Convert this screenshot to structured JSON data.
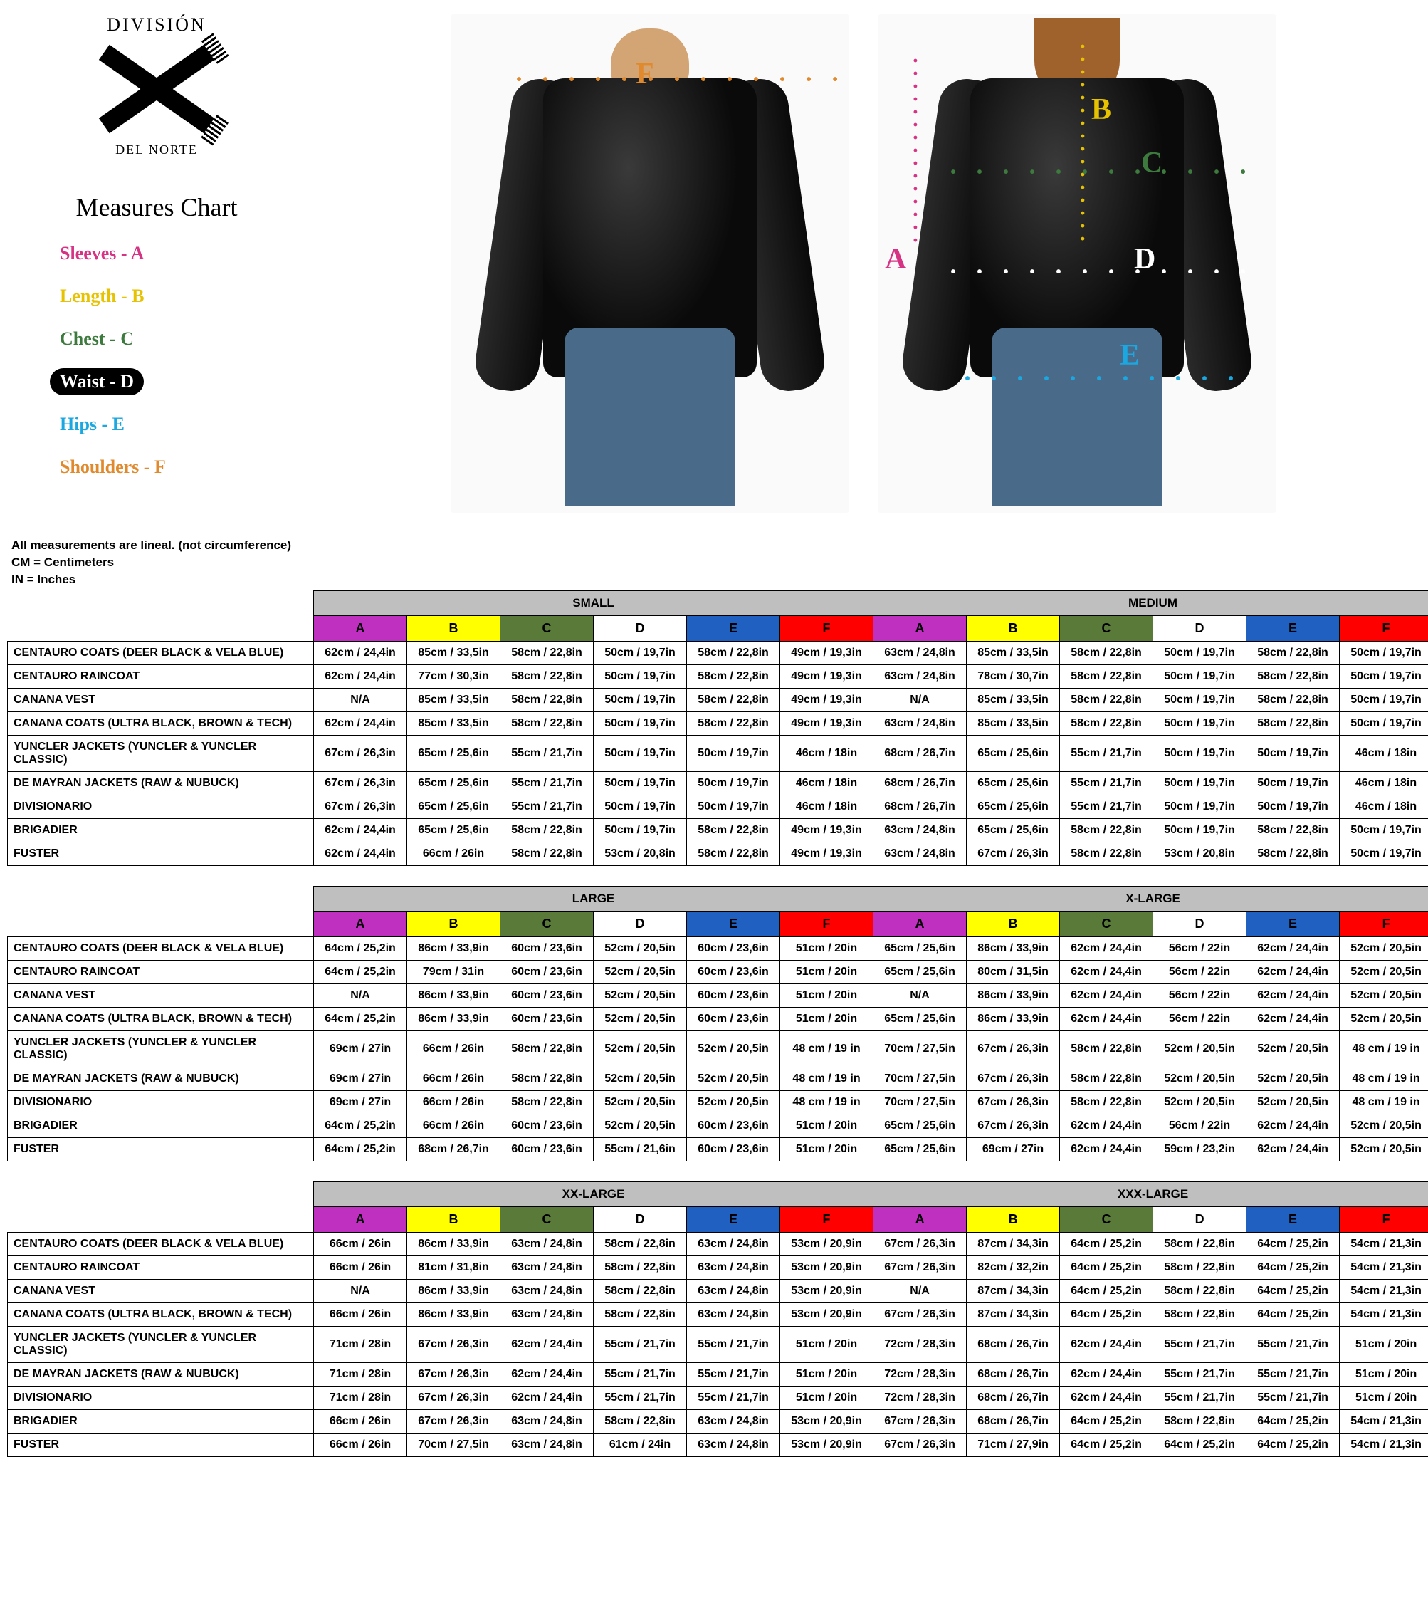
{
  "brand": {
    "top": "DIVISIÓN",
    "bot": "DEL NORTE"
  },
  "title": "Measures Chart",
  "legend": [
    {
      "label": "Sleeves - A",
      "color": "#d63384"
    },
    {
      "label": "Length - B",
      "color": "#e6c200"
    },
    {
      "label": "Chest - C",
      "color": "#3d7a3d"
    },
    {
      "label": "Waist - D",
      "color": "#ffffff",
      "pill": true
    },
    {
      "label": "Hips - E",
      "color": "#1ba8e0"
    },
    {
      "label": "Shoulders - F",
      "color": "#e08a2d"
    }
  ],
  "markers": {
    "F": "#e08a2d",
    "A": "#d63384",
    "B": "#e6c200",
    "C": "#3d7a3d",
    "D": "#ffffff",
    "E": "#1ba8e0"
  },
  "notes": [
    "All measurements are lineal. (not circumference)",
    "CM = Centimeters",
    "IN = Inches"
  ],
  "col_headers": [
    {
      "l": "A",
      "bg": "#c030c0",
      "fg": "#000"
    },
    {
      "l": "B",
      "bg": "#ffff00",
      "fg": "#000"
    },
    {
      "l": "C",
      "bg": "#5a7a3a",
      "fg": "#000"
    },
    {
      "l": "D",
      "bg": "#ffffff",
      "fg": "#000"
    },
    {
      "l": "E",
      "bg": "#2060c0",
      "fg": "#000"
    },
    {
      "l": "F",
      "bg": "#ff0000",
      "fg": "#000"
    }
  ],
  "products": [
    "CENTAURO COATS (DEER BLACK & VELA BLUE)",
    "CENTAURO RAINCOAT",
    "CANANA VEST",
    "CANANA COATS (ULTRA BLACK, BROWN & TECH)",
    "YUNCLER JACKETS (YUNCLER & YUNCLER CLASSIC)",
    "DE MAYRAN JACKETS (RAW & NUBUCK)",
    "DIVISIONARIO",
    "BRIGADIER",
    "FUSTER"
  ],
  "size_pairs": [
    [
      "SMALL",
      "MEDIUM"
    ],
    [
      "LARGE",
      "X-LARGE"
    ],
    [
      "XX-LARGE",
      "XXX-LARGE"
    ]
  ],
  "data": {
    "SMALL": [
      [
        "62cm / 24,4in",
        "85cm / 33,5in",
        "58cm / 22,8in",
        "50cm / 19,7in",
        "58cm / 22,8in",
        "49cm / 19,3in"
      ],
      [
        "62cm / 24,4in",
        "77cm / 30,3in",
        "58cm / 22,8in",
        "50cm / 19,7in",
        "58cm / 22,8in",
        "49cm / 19,3in"
      ],
      [
        "N/A",
        "85cm / 33,5in",
        "58cm / 22,8in",
        "50cm / 19,7in",
        "58cm / 22,8in",
        "49cm / 19,3in"
      ],
      [
        "62cm / 24,4in",
        "85cm / 33,5in",
        "58cm / 22,8in",
        "50cm / 19,7in",
        "58cm / 22,8in",
        "49cm / 19,3in"
      ],
      [
        "67cm / 26,3in",
        "65cm / 25,6in",
        "55cm / 21,7in",
        "50cm / 19,7in",
        "50cm / 19,7in",
        "46cm / 18in"
      ],
      [
        "67cm / 26,3in",
        "65cm / 25,6in",
        "55cm / 21,7in",
        "50cm / 19,7in",
        "50cm / 19,7in",
        "46cm / 18in"
      ],
      [
        "67cm / 26,3in",
        "65cm / 25,6in",
        "55cm / 21,7in",
        "50cm / 19,7in",
        "50cm / 19,7in",
        "46cm / 18in"
      ],
      [
        "62cm / 24,4in",
        "65cm / 25,6in",
        "58cm / 22,8in",
        "50cm / 19,7in",
        "58cm / 22,8in",
        "49cm / 19,3in"
      ],
      [
        "62cm / 24,4in",
        "66cm / 26in",
        "58cm / 22,8in",
        "53cm / 20,8in",
        "58cm / 22,8in",
        "49cm / 19,3in"
      ]
    ],
    "MEDIUM": [
      [
        "63cm / 24,8in",
        "85cm / 33,5in",
        "58cm / 22,8in",
        "50cm / 19,7in",
        "58cm / 22,8in",
        "50cm / 19,7in"
      ],
      [
        "63cm / 24,8in",
        "78cm / 30,7in",
        "58cm / 22,8in",
        "50cm / 19,7in",
        "58cm / 22,8in",
        "50cm / 19,7in"
      ],
      [
        "N/A",
        "85cm / 33,5in",
        "58cm / 22,8in",
        "50cm / 19,7in",
        "58cm / 22,8in",
        "50cm / 19,7in"
      ],
      [
        "63cm / 24,8in",
        "85cm / 33,5in",
        "58cm / 22,8in",
        "50cm / 19,7in",
        "58cm / 22,8in",
        "50cm / 19,7in"
      ],
      [
        "68cm / 26,7in",
        "65cm / 25,6in",
        "55cm / 21,7in",
        "50cm / 19,7in",
        "50cm / 19,7in",
        "46cm / 18in"
      ],
      [
        "68cm / 26,7in",
        "65cm / 25,6in",
        "55cm / 21,7in",
        "50cm / 19,7in",
        "50cm / 19,7in",
        "46cm / 18in"
      ],
      [
        "68cm / 26,7in",
        "65cm / 25,6in",
        "55cm / 21,7in",
        "50cm / 19,7in",
        "50cm / 19,7in",
        "46cm / 18in"
      ],
      [
        "63cm / 24,8in",
        "65cm / 25,6in",
        "58cm / 22,8in",
        "50cm / 19,7in",
        "58cm / 22,8in",
        "50cm / 19,7in"
      ],
      [
        "63cm / 24,8in",
        "67cm / 26,3in",
        "58cm / 22,8in",
        "53cm / 20,8in",
        "58cm / 22,8in",
        "50cm / 19,7in"
      ]
    ],
    "LARGE": [
      [
        "64cm / 25,2in",
        "86cm / 33,9in",
        "60cm / 23,6in",
        "52cm / 20,5in",
        "60cm / 23,6in",
        "51cm / 20in"
      ],
      [
        "64cm / 25,2in",
        "79cm / 31in",
        "60cm / 23,6in",
        "52cm / 20,5in",
        "60cm / 23,6in",
        "51cm / 20in"
      ],
      [
        "N/A",
        "86cm / 33,9in",
        "60cm / 23,6in",
        "52cm / 20,5in",
        "60cm / 23,6in",
        "51cm / 20in"
      ],
      [
        "64cm / 25,2in",
        "86cm / 33,9in",
        "60cm / 23,6in",
        "52cm / 20,5in",
        "60cm / 23,6in",
        "51cm / 20in"
      ],
      [
        "69cm / 27in",
        "66cm / 26in",
        "58cm / 22,8in",
        "52cm / 20,5in",
        "52cm / 20,5in",
        "48 cm / 19 in"
      ],
      [
        "69cm / 27in",
        "66cm / 26in",
        "58cm / 22,8in",
        "52cm / 20,5in",
        "52cm / 20,5in",
        "48 cm / 19 in"
      ],
      [
        "69cm / 27in",
        "66cm / 26in",
        "58cm / 22,8in",
        "52cm / 20,5in",
        "52cm / 20,5in",
        "48 cm / 19 in"
      ],
      [
        "64cm / 25,2in",
        "66cm / 26in",
        "60cm / 23,6in",
        "52cm / 20,5in",
        "60cm / 23,6in",
        "51cm / 20in"
      ],
      [
        "64cm / 25,2in",
        "68cm / 26,7in",
        "60cm / 23,6in",
        "55cm / 21,6in",
        "60cm / 23,6in",
        "51cm / 20in"
      ]
    ],
    "X-LARGE": [
      [
        "65cm / 25,6in",
        "86cm / 33,9in",
        "62cm / 24,4in",
        "56cm / 22in",
        "62cm / 24,4in",
        "52cm / 20,5in"
      ],
      [
        "65cm / 25,6in",
        "80cm / 31,5in",
        "62cm / 24,4in",
        "56cm / 22in",
        "62cm / 24,4in",
        "52cm / 20,5in"
      ],
      [
        "N/A",
        "86cm / 33,9in",
        "62cm / 24,4in",
        "56cm / 22in",
        "62cm / 24,4in",
        "52cm / 20,5in"
      ],
      [
        "65cm / 25,6in",
        "86cm / 33,9in",
        "62cm / 24,4in",
        "56cm / 22in",
        "62cm / 24,4in",
        "52cm / 20,5in"
      ],
      [
        "70cm / 27,5in",
        "67cm / 26,3in",
        "58cm / 22,8in",
        "52cm / 20,5in",
        "52cm / 20,5in",
        "48 cm / 19 in"
      ],
      [
        "70cm / 27,5in",
        "67cm / 26,3in",
        "58cm / 22,8in",
        "52cm / 20,5in",
        "52cm / 20,5in",
        "48 cm / 19 in"
      ],
      [
        "70cm / 27,5in",
        "67cm / 26,3in",
        "58cm / 22,8in",
        "52cm / 20,5in",
        "52cm / 20,5in",
        "48 cm / 19 in"
      ],
      [
        "65cm / 25,6in",
        "67cm / 26,3in",
        "62cm / 24,4in",
        "56cm / 22in",
        "62cm / 24,4in",
        "52cm / 20,5in"
      ],
      [
        "65cm / 25,6in",
        "69cm / 27in",
        "62cm / 24,4in",
        "59cm / 23,2in",
        "62cm / 24,4in",
        "52cm / 20,5in"
      ]
    ],
    "XX-LARGE": [
      [
        "66cm / 26in",
        "86cm / 33,9in",
        "63cm / 24,8in",
        "58cm / 22,8in",
        "63cm / 24,8in",
        "53cm / 20,9in"
      ],
      [
        "66cm / 26in",
        "81cm / 31,8in",
        "63cm / 24,8in",
        "58cm / 22,8in",
        "63cm / 24,8in",
        "53cm / 20,9in"
      ],
      [
        "N/A",
        "86cm / 33,9in",
        "63cm / 24,8in",
        "58cm / 22,8in",
        "63cm / 24,8in",
        "53cm / 20,9in"
      ],
      [
        "66cm / 26in",
        "86cm / 33,9in",
        "63cm / 24,8in",
        "58cm / 22,8in",
        "63cm / 24,8in",
        "53cm / 20,9in"
      ],
      [
        "71cm / 28in",
        "67cm / 26,3in",
        "62cm / 24,4in",
        "55cm / 21,7in",
        "55cm / 21,7in",
        "51cm / 20in"
      ],
      [
        "71cm / 28in",
        "67cm / 26,3in",
        "62cm / 24,4in",
        "55cm / 21,7in",
        "55cm / 21,7in",
        "51cm / 20in"
      ],
      [
        "71cm / 28in",
        "67cm / 26,3in",
        "62cm / 24,4in",
        "55cm / 21,7in",
        "55cm / 21,7in",
        "51cm / 20in"
      ],
      [
        "66cm / 26in",
        "67cm / 26,3in",
        "63cm / 24,8in",
        "58cm / 22,8in",
        "63cm / 24,8in",
        "53cm / 20,9in"
      ],
      [
        "66cm / 26in",
        "70cm / 27,5in",
        "63cm / 24,8in",
        "61cm / 24in",
        "63cm / 24,8in",
        "53cm / 20,9in"
      ]
    ],
    "XXX-LARGE": [
      [
        "67cm / 26,3in",
        "87cm / 34,3in",
        "64cm / 25,2in",
        "58cm / 22,8in",
        "64cm / 25,2in",
        "54cm / 21,3in"
      ],
      [
        "67cm / 26,3in",
        "82cm / 32,2in",
        "64cm / 25,2in",
        "58cm / 22,8in",
        "64cm / 25,2in",
        "54cm / 21,3in"
      ],
      [
        "N/A",
        "87cm / 34,3in",
        "64cm / 25,2in",
        "58cm / 22,8in",
        "64cm / 25,2in",
        "54cm / 21,3in"
      ],
      [
        "67cm / 26,3in",
        "87cm / 34,3in",
        "64cm / 25,2in",
        "58cm / 22,8in",
        "64cm / 25,2in",
        "54cm / 21,3in"
      ],
      [
        "72cm / 28,3in",
        "68cm / 26,7in",
        "62cm / 24,4in",
        "55cm / 21,7in",
        "55cm / 21,7in",
        "51cm / 20in"
      ],
      [
        "72cm / 28,3in",
        "68cm / 26,7in",
        "62cm / 24,4in",
        "55cm / 21,7in",
        "55cm / 21,7in",
        "51cm / 20in"
      ],
      [
        "72cm / 28,3in",
        "68cm / 26,7in",
        "62cm / 24,4in",
        "55cm / 21,7in",
        "55cm / 21,7in",
        "51cm / 20in"
      ],
      [
        "67cm / 26,3in",
        "68cm / 26,7in",
        "64cm / 25,2in",
        "58cm / 22,8in",
        "64cm / 25,2in",
        "54cm / 21,3in"
      ],
      [
        "67cm / 26,3in",
        "71cm / 27,9in",
        "64cm / 25,2in",
        "64cm / 25,2in",
        "64cm / 25,2in",
        "54cm / 21,3in"
      ]
    ]
  }
}
